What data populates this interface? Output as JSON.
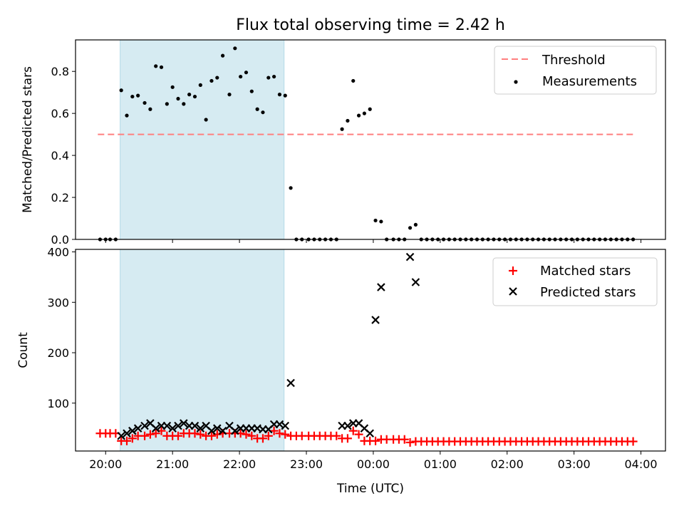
{
  "chart_data": [
    {
      "type": "scatter",
      "title": "Flux total observing time = 2.42 h",
      "xlabel": "",
      "ylabel": "Matched/Predicted stars",
      "xlim": [
        "19:33",
        "04:22"
      ],
      "ylim": [
        0,
        0.95
      ],
      "yticks": [
        0.0,
        0.2,
        0.4,
        0.6,
        0.8
      ],
      "xticks": [
        "20:00",
        "21:00",
        "22:00",
        "23:00",
        "00:00",
        "01:00",
        "02:00",
        "03:00",
        "04:00"
      ],
      "shaded_span": [
        "20:13",
        "22:40"
      ],
      "threshold": {
        "name": "Threshold",
        "y": 0.5,
        "x_from": "19:53",
        "x_to": "03:53",
        "color": "#ff7f7f"
      },
      "series": [
        {
          "name": "Measurements",
          "color": "#000000",
          "points": [
            [
              "19:55",
              0.0
            ],
            [
              "20:00",
              0.0
            ],
            [
              "20:04",
              0.0
            ],
            [
              "20:09",
              0.0
            ],
            [
              "20:14",
              0.71
            ],
            [
              "20:19",
              0.59
            ],
            [
              "20:24",
              0.68
            ],
            [
              "20:29",
              0.685
            ],
            [
              "20:35",
              0.65
            ],
            [
              "20:40",
              0.62
            ],
            [
              "20:45",
              0.825
            ],
            [
              "20:50",
              0.82
            ],
            [
              "20:55",
              0.645
            ],
            [
              "21:00",
              0.725
            ],
            [
              "21:05",
              0.67
            ],
            [
              "21:10",
              0.645
            ],
            [
              "21:15",
              0.69
            ],
            [
              "21:20",
              0.68
            ],
            [
              "21:25",
              0.735
            ],
            [
              "21:30",
              0.57
            ],
            [
              "21:35",
              0.755
            ],
            [
              "21:40",
              0.77
            ],
            [
              "21:45",
              0.875
            ],
            [
              "21:51",
              0.69
            ],
            [
              "21:56",
              0.91
            ],
            [
              "22:01",
              0.775
            ],
            [
              "22:06",
              0.795
            ],
            [
              "22:11",
              0.705
            ],
            [
              "22:16",
              0.62
            ],
            [
              "22:21",
              0.605
            ],
            [
              "22:26",
              0.77
            ],
            [
              "22:31",
              0.775
            ],
            [
              "22:36",
              0.69
            ],
            [
              "22:41",
              0.685
            ],
            [
              "22:46",
              0.245
            ],
            [
              "22:51",
              0.0
            ],
            [
              "22:56",
              0.0
            ],
            [
              "23:02",
              0.0
            ],
            [
              "23:07",
              0.0
            ],
            [
              "23:12",
              0.0
            ],
            [
              "23:17",
              0.0
            ],
            [
              "23:22",
              0.0
            ],
            [
              "23:27",
              0.0
            ],
            [
              "23:32",
              0.525
            ],
            [
              "23:37",
              0.565
            ],
            [
              "23:42",
              0.755
            ],
            [
              "23:47",
              0.59
            ],
            [
              "23:52",
              0.6
            ],
            [
              "23:57",
              0.62
            ],
            [
              "00:02",
              0.09
            ],
            [
              "00:07",
              0.085
            ],
            [
              "00:12",
              0.0
            ],
            [
              "00:18",
              0.0
            ],
            [
              "00:23",
              0.0
            ],
            [
              "00:28",
              0.0
            ],
            [
              "00:33",
              0.055
            ],
            [
              "00:38",
              0.07
            ],
            [
              "00:43",
              0.0
            ],
            [
              "00:48",
              0.0
            ],
            [
              "00:53",
              0.0
            ],
            [
              "00:58",
              0.0
            ],
            [
              "01:03",
              0.0
            ],
            [
              "01:08",
              0.0
            ],
            [
              "01:13",
              0.0
            ],
            [
              "01:18",
              0.0
            ],
            [
              "01:23",
              0.0
            ],
            [
              "01:28",
              0.0
            ],
            [
              "01:33",
              0.0
            ],
            [
              "01:38",
              0.0
            ],
            [
              "01:43",
              0.0
            ],
            [
              "01:48",
              0.0
            ],
            [
              "01:53",
              0.0
            ],
            [
              "01:58",
              0.0
            ],
            [
              "02:03",
              0.0
            ],
            [
              "02:08",
              0.0
            ],
            [
              "02:13",
              0.0
            ],
            [
              "02:18",
              0.0
            ],
            [
              "02:23",
              0.0
            ],
            [
              "02:28",
              0.0
            ],
            [
              "02:33",
              0.0
            ],
            [
              "02:38",
              0.0
            ],
            [
              "02:43",
              0.0
            ],
            [
              "02:48",
              0.0
            ],
            [
              "02:53",
              0.0
            ],
            [
              "02:58",
              0.0
            ],
            [
              "03:03",
              0.0
            ],
            [
              "03:08",
              0.0
            ],
            [
              "03:13",
              0.0
            ],
            [
              "03:18",
              0.0
            ],
            [
              "03:23",
              0.0
            ],
            [
              "03:28",
              0.0
            ],
            [
              "03:33",
              0.0
            ],
            [
              "03:38",
              0.0
            ],
            [
              "03:43",
              0.0
            ],
            [
              "03:48",
              0.0
            ],
            [
              "03:53",
              0.0
            ]
          ]
        }
      ],
      "legend": "top-right"
    },
    {
      "type": "scatter",
      "title": "",
      "xlabel": "Time (UTC)",
      "ylabel": "Count",
      "xlim": [
        "19:33",
        "04:22"
      ],
      "ylim": [
        5,
        405
      ],
      "yticks": [
        100,
        200,
        300,
        400
      ],
      "xticks": [
        "20:00",
        "21:00",
        "22:00",
        "23:00",
        "00:00",
        "01:00",
        "02:00",
        "03:00",
        "04:00"
      ],
      "shaded_span": [
        "20:13",
        "22:40"
      ],
      "series": [
        {
          "name": "Matched stars",
          "marker": "plus",
          "color": "#ff0000",
          "points": [
            [
              "19:55",
              40
            ],
            [
              "20:00",
              40
            ],
            [
              "20:04",
              40
            ],
            [
              "20:09",
              40
            ],
            [
              "20:14",
              25
            ],
            [
              "20:19",
              25
            ],
            [
              "20:24",
              30
            ],
            [
              "20:29",
              35
            ],
            [
              "20:35",
              35
            ],
            [
              "20:40",
              38
            ],
            [
              "20:45",
              40
            ],
            [
              "20:50",
              45
            ],
            [
              "20:55",
              35
            ],
            [
              "21:00",
              35
            ],
            [
              "21:05",
              35
            ],
            [
              "21:10",
              40
            ],
            [
              "21:15",
              40
            ],
            [
              "21:20",
              40
            ],
            [
              "21:25",
              38
            ],
            [
              "21:30",
              35
            ],
            [
              "21:35",
              35
            ],
            [
              "21:40",
              38
            ],
            [
              "21:45",
              40
            ],
            [
              "21:51",
              40
            ],
            [
              "21:56",
              40
            ],
            [
              "22:01",
              40
            ],
            [
              "22:06",
              38
            ],
            [
              "22:11",
              35
            ],
            [
              "22:16",
              30
            ],
            [
              "22:21",
              30
            ],
            [
              "22:26",
              35
            ],
            [
              "22:31",
              45
            ],
            [
              "22:36",
              40
            ],
            [
              "22:41",
              38
            ],
            [
              "22:46",
              35
            ],
            [
              "22:51",
              35
            ],
            [
              "22:56",
              35
            ],
            [
              "23:02",
              35
            ],
            [
              "23:07",
              35
            ],
            [
              "23:12",
              35
            ],
            [
              "23:17",
              35
            ],
            [
              "23:22",
              35
            ],
            [
              "23:27",
              35
            ],
            [
              "23:32",
              30
            ],
            [
              "23:37",
              30
            ],
            [
              "23:42",
              45
            ],
            [
              "23:47",
              38
            ],
            [
              "23:52",
              25
            ],
            [
              "23:57",
              25
            ],
            [
              "00:02",
              25
            ],
            [
              "00:07",
              28
            ],
            [
              "00:12",
              28
            ],
            [
              "00:18",
              28
            ],
            [
              "00:23",
              28
            ],
            [
              "00:28",
              28
            ],
            [
              "00:33",
              22
            ],
            [
              "00:38",
              24
            ],
            [
              "00:43",
              24
            ],
            [
              "00:48",
              24
            ],
            [
              "00:53",
              24
            ],
            [
              "00:58",
              24
            ],
            [
              "01:03",
              24
            ],
            [
              "01:08",
              24
            ],
            [
              "01:13",
              24
            ],
            [
              "01:18",
              24
            ],
            [
              "01:23",
              24
            ],
            [
              "01:28",
              24
            ],
            [
              "01:33",
              24
            ],
            [
              "01:38",
              24
            ],
            [
              "01:43",
              24
            ],
            [
              "01:48",
              24
            ],
            [
              "01:53",
              24
            ],
            [
              "01:58",
              24
            ],
            [
              "02:03",
              24
            ],
            [
              "02:08",
              24
            ],
            [
              "02:13",
              24
            ],
            [
              "02:18",
              24
            ],
            [
              "02:23",
              24
            ],
            [
              "02:28",
              24
            ],
            [
              "02:33",
              24
            ],
            [
              "02:38",
              24
            ],
            [
              "02:43",
              24
            ],
            [
              "02:48",
              24
            ],
            [
              "02:53",
              24
            ],
            [
              "02:58",
              24
            ],
            [
              "03:03",
              24
            ],
            [
              "03:08",
              24
            ],
            [
              "03:13",
              24
            ],
            [
              "03:18",
              24
            ],
            [
              "03:23",
              24
            ],
            [
              "03:28",
              24
            ],
            [
              "03:33",
              24
            ],
            [
              "03:38",
              24
            ],
            [
              "03:43",
              24
            ],
            [
              "03:48",
              24
            ],
            [
              "03:53",
              24
            ]
          ]
        },
        {
          "name": "Predicted stars",
          "marker": "x",
          "color": "#000000",
          "points": [
            [
              "20:14",
              35
            ],
            [
              "20:19",
              40
            ],
            [
              "20:24",
              45
            ],
            [
              "20:29",
              50
            ],
            [
              "20:35",
              55
            ],
            [
              "20:40",
              60
            ],
            [
              "20:45",
              50
            ],
            [
              "20:50",
              55
            ],
            [
              "20:55",
              55
            ],
            [
              "21:00",
              50
            ],
            [
              "21:05",
              55
            ],
            [
              "21:10",
              60
            ],
            [
              "21:15",
              55
            ],
            [
              "21:20",
              55
            ],
            [
              "21:25",
              50
            ],
            [
              "21:30",
              55
            ],
            [
              "21:35",
              45
            ],
            [
              "21:40",
              50
            ],
            [
              "21:45",
              45
            ],
            [
              "21:51",
              55
            ],
            [
              "21:56",
              45
            ],
            [
              "22:01",
              50
            ],
            [
              "22:06",
              50
            ],
            [
              "22:11",
              50
            ],
            [
              "22:16",
              50
            ],
            [
              "22:21",
              48
            ],
            [
              "22:26",
              48
            ],
            [
              "22:31",
              58
            ],
            [
              "22:36",
              58
            ],
            [
              "22:41",
              55
            ],
            [
              "22:46",
              140
            ],
            [
              "23:32",
              55
            ],
            [
              "23:37",
              55
            ],
            [
              "23:42",
              60
            ],
            [
              "23:47",
              60
            ],
            [
              "23:52",
              50
            ],
            [
              "23:57",
              40
            ],
            [
              "00:02",
              265
            ],
            [
              "00:07",
              330
            ],
            [
              "00:33",
              390
            ],
            [
              "00:38",
              340
            ]
          ]
        }
      ],
      "legend": "top-right"
    }
  ]
}
